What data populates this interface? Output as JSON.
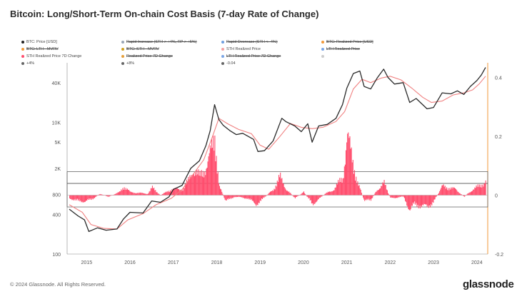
{
  "header": {
    "title": "Bitcoin: Long/Short-Term On-chain Cost Basis (7-day Rate of Change)"
  },
  "legend": [
    {
      "label": "BTC: Price [USD]",
      "color": "#222222",
      "struck": false
    },
    {
      "label": "Rapid Increase (STH > +4%, RP > +5%)",
      "color": "#9aa7b8",
      "struck": true
    },
    {
      "label": "Rapid Decrease (STH < -4%)",
      "color": "#6f9fe0",
      "struck": true
    },
    {
      "label": "BTC: Realized Price [USD]",
      "color": "#f29a3a",
      "struck": true
    },
    {
      "label": "BTC: LTH - MVRV",
      "color": "#f29a3a",
      "struck": true
    },
    {
      "label": "BTC: STH - MVRV",
      "color": "#d0a020",
      "struck": true
    },
    {
      "label": "STH Realized Price",
      "color": "#f4a0a0",
      "struck": false
    },
    {
      "label": "LTH Realized Price",
      "color": "#7aa6e6",
      "struck": true
    },
    {
      "label": "STH Realized Price 7D Change",
      "color": "#ff4d6d",
      "struck": false
    },
    {
      "label": "Realized Price 7D Change",
      "color": "#e6a03a",
      "struck": true
    },
    {
      "label": "LTH Realized Price 7D Change",
      "color": "#7aa6e6",
      "struck": true
    },
    {
      "label": "",
      "color": "#cccccc",
      "struck": false
    },
    {
      "label": "+4%",
      "color": "#666666",
      "struck": false
    },
    {
      "label": "+8%",
      "color": "#666666",
      "struck": false
    },
    {
      "label": "-0.04",
      "color": "#666666",
      "struck": false
    }
  ],
  "footer": {
    "copyright": "© 2024 Glassnode. All Rights Reserved.",
    "brand": "glassnode"
  },
  "colors": {
    "price": "#2a2a2a",
    "sth_realized": "#f08080",
    "roc": "#ff4d6d",
    "right_axis": "#f29a3a"
  },
  "chart_data": {
    "type": "line",
    "title": "Bitcoin: Long/Short-Term On-chain Cost Basis (7-day Rate of Change)",
    "x_ticks": [
      "2015",
      "2016",
      "2017",
      "2018",
      "2019",
      "2020",
      "2021",
      "2022",
      "2023",
      "2024"
    ],
    "left_axis": {
      "scale": "log",
      "ticks": [
        "40K",
        "10K",
        "5K",
        "2K",
        "800",
        "400",
        "100"
      ],
      "range": [
        100,
        80000
      ]
    },
    "right_axis": {
      "ticks": [
        "0.4",
        "0.2",
        "0",
        "-0.2"
      ],
      "range": [
        -0.2,
        0.45
      ]
    },
    "reference_levels": [
      0.04,
      0.08,
      -0.04
    ],
    "series": [
      {
        "name": "BTC: Price [USD]",
        "axis": "left",
        "points": [
          [
            2014.6,
            480
          ],
          [
            2014.8,
            380
          ],
          [
            2014.95,
            330
          ],
          [
            2015.05,
            220
          ],
          [
            2015.25,
            250
          ],
          [
            2015.45,
            230
          ],
          [
            2015.7,
            240
          ],
          [
            2015.85,
            340
          ],
          [
            2016.0,
            430
          ],
          [
            2016.3,
            420
          ],
          [
            2016.5,
            640
          ],
          [
            2016.7,
            610
          ],
          [
            2016.9,
            740
          ],
          [
            2017.0,
            960
          ],
          [
            2017.2,
            1100
          ],
          [
            2017.4,
            2000
          ],
          [
            2017.6,
            2600
          ],
          [
            2017.75,
            4400
          ],
          [
            2017.85,
            7500
          ],
          [
            2017.95,
            18500
          ],
          [
            2018.05,
            11000
          ],
          [
            2018.15,
            9000
          ],
          [
            2018.3,
            7500
          ],
          [
            2018.45,
            6500
          ],
          [
            2018.6,
            6800
          ],
          [
            2018.85,
            5500
          ],
          [
            2018.95,
            3600
          ],
          [
            2019.1,
            3700
          ],
          [
            2019.3,
            5200
          ],
          [
            2019.5,
            11500
          ],
          [
            2019.6,
            10200
          ],
          [
            2019.8,
            8800
          ],
          [
            2019.95,
            7200
          ],
          [
            2020.1,
            9500
          ],
          [
            2020.2,
            5000
          ],
          [
            2020.35,
            8800
          ],
          [
            2020.55,
            9300
          ],
          [
            2020.75,
            11500
          ],
          [
            2020.9,
            18500
          ],
          [
            2021.0,
            33000
          ],
          [
            2021.15,
            55000
          ],
          [
            2021.3,
            60000
          ],
          [
            2021.4,
            35000
          ],
          [
            2021.55,
            32000
          ],
          [
            2021.7,
            47000
          ],
          [
            2021.85,
            64000
          ],
          [
            2021.95,
            48000
          ],
          [
            2022.1,
            38000
          ],
          [
            2022.3,
            40000
          ],
          [
            2022.45,
            20000
          ],
          [
            2022.6,
            23000
          ],
          [
            2022.85,
            16000
          ],
          [
            2023.0,
            16800
          ],
          [
            2023.2,
            28000
          ],
          [
            2023.4,
            27000
          ],
          [
            2023.55,
            30000
          ],
          [
            2023.7,
            26500
          ],
          [
            2023.85,
            35000
          ],
          [
            2024.0,
            43000
          ],
          [
            2024.1,
            52000
          ],
          [
            2024.2,
            68000
          ]
        ]
      },
      {
        "name": "STH Realized Price",
        "axis": "left",
        "points": [
          [
            2014.6,
            560
          ],
          [
            2014.9,
            430
          ],
          [
            2015.1,
            280
          ],
          [
            2015.4,
            245
          ],
          [
            2015.7,
            240
          ],
          [
            2015.95,
            330
          ],
          [
            2016.3,
            410
          ],
          [
            2016.6,
            560
          ],
          [
            2016.95,
            700
          ],
          [
            2017.2,
            950
          ],
          [
            2017.45,
            1600
          ],
          [
            2017.7,
            2700
          ],
          [
            2017.9,
            6000
          ],
          [
            2018.05,
            11500
          ],
          [
            2018.25,
            9500
          ],
          [
            2018.5,
            7800
          ],
          [
            2018.8,
            6700
          ],
          [
            2019.0,
            4500
          ],
          [
            2019.2,
            3900
          ],
          [
            2019.45,
            6000
          ],
          [
            2019.7,
            9600
          ],
          [
            2019.95,
            8400
          ],
          [
            2020.2,
            8000
          ],
          [
            2020.45,
            8400
          ],
          [
            2020.75,
            10300
          ],
          [
            2020.95,
            14500
          ],
          [
            2021.15,
            32000
          ],
          [
            2021.35,
            45000
          ],
          [
            2021.55,
            40000
          ],
          [
            2021.8,
            47000
          ],
          [
            2022.0,
            50000
          ],
          [
            2022.25,
            44000
          ],
          [
            2022.5,
            33000
          ],
          [
            2022.75,
            24000
          ],
          [
            2022.95,
            20000
          ],
          [
            2023.2,
            21000
          ],
          [
            2023.45,
            26000
          ],
          [
            2023.7,
            28000
          ],
          [
            2023.9,
            31000
          ],
          [
            2024.05,
            38000
          ],
          [
            2024.2,
            50000
          ]
        ]
      },
      {
        "name": "STH Realized Price 7D Change",
        "axis": "right",
        "points": [
          [
            2014.6,
            -0.01
          ],
          [
            2014.8,
            -0.02
          ],
          [
            2014.95,
            -0.02
          ],
          [
            2015.1,
            -0.015
          ],
          [
            2015.3,
            0.005
          ],
          [
            2015.5,
            -0.005
          ],
          [
            2015.75,
            0.01
          ],
          [
            2015.85,
            0.03
          ],
          [
            2016.0,
            0.01
          ],
          [
            2016.4,
            0.005
          ],
          [
            2016.5,
            0.025
          ],
          [
            2016.7,
            0.0
          ],
          [
            2016.95,
            0.02
          ],
          [
            2017.2,
            0.02
          ],
          [
            2017.35,
            0.05
          ],
          [
            2017.45,
            0.09
          ],
          [
            2017.6,
            0.06
          ],
          [
            2017.75,
            0.1
          ],
          [
            2017.88,
            0.15
          ],
          [
            2017.95,
            0.2
          ],
          [
            2018.05,
            0.03
          ],
          [
            2018.2,
            -0.02
          ],
          [
            2018.4,
            -0.005
          ],
          [
            2018.7,
            -0.01
          ],
          [
            2018.9,
            -0.03
          ],
          [
            2019.0,
            -0.02
          ],
          [
            2019.3,
            0.02
          ],
          [
            2019.45,
            0.06
          ],
          [
            2019.6,
            0.02
          ],
          [
            2019.8,
            -0.01
          ],
          [
            2020.0,
            0.01
          ],
          [
            2020.2,
            -0.03
          ],
          [
            2020.5,
            0.005
          ],
          [
            2020.7,
            0.02
          ],
          [
            2020.9,
            0.06
          ],
          [
            2021.0,
            0.2
          ],
          [
            2021.1,
            0.13
          ],
          [
            2021.25,
            0.04
          ],
          [
            2021.4,
            -0.02
          ],
          [
            2021.55,
            -0.015
          ],
          [
            2021.7,
            0.02
          ],
          [
            2021.85,
            0.04
          ],
          [
            2022.0,
            -0.01
          ],
          [
            2022.3,
            -0.005
          ],
          [
            2022.45,
            -0.05
          ],
          [
            2022.55,
            -0.03
          ],
          [
            2022.85,
            -0.04
          ],
          [
            2023.0,
            -0.02
          ],
          [
            2023.2,
            0.03
          ],
          [
            2023.5,
            0.02
          ],
          [
            2023.7,
            -0.005
          ],
          [
            2023.9,
            0.02
          ],
          [
            2024.05,
            0.03
          ],
          [
            2024.2,
            0.05
          ]
        ]
      }
    ],
    "grid": false,
    "legend_position": "top"
  }
}
